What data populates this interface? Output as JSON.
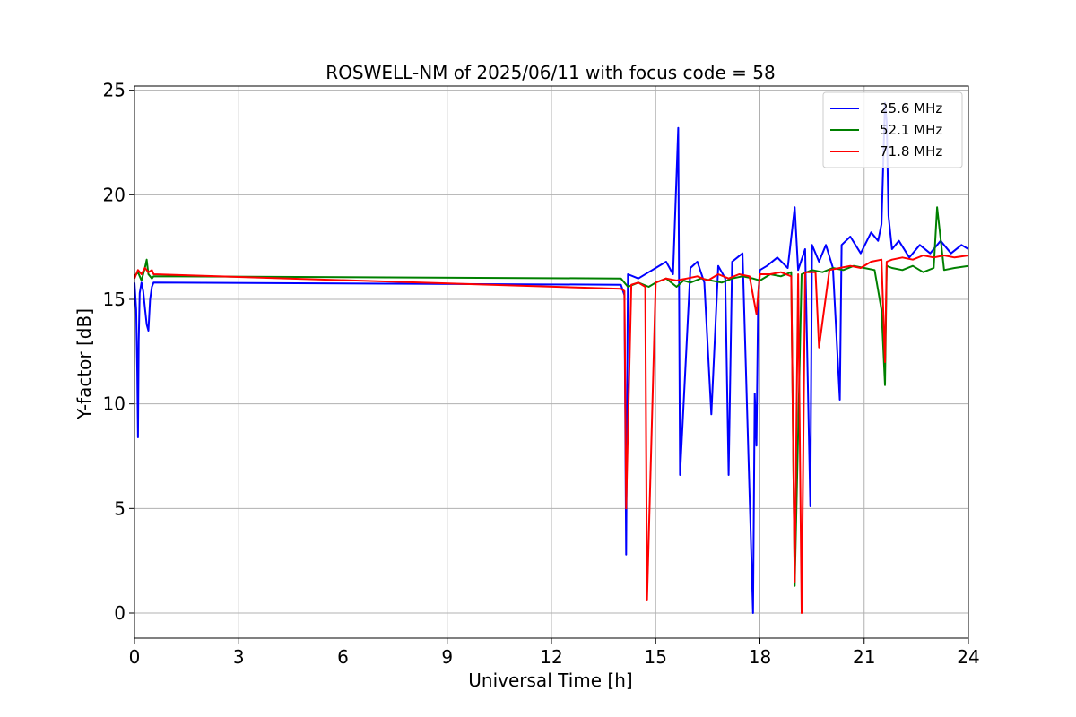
{
  "chart_data": {
    "type": "line",
    "title": "ROSWELL-NM of 2025/06/11 with focus code = 58",
    "xlabel": "Universal Time [h]",
    "ylabel": "Y-factor [dB]",
    "xlim": [
      0,
      24
    ],
    "ylim": [
      -1.2,
      25.2
    ],
    "xticks": [
      0,
      3,
      6,
      9,
      12,
      15,
      18,
      21,
      24
    ],
    "xtick_labels": [
      "0",
      "3",
      "6",
      "9",
      "12",
      "15",
      "18",
      "21",
      "24"
    ],
    "yticks": [
      0,
      5,
      10,
      15,
      20,
      25
    ],
    "ytick_labels": [
      "0",
      "5",
      "10",
      "15",
      "20",
      "25"
    ],
    "grid": true,
    "legend_position": "top-right",
    "series": [
      {
        "name": "25.6 MHz",
        "color": "#0000ff",
        "x": [
          0.0,
          0.05,
          0.08,
          0.1,
          0.12,
          0.15,
          0.2,
          0.25,
          0.3,
          0.35,
          0.4,
          0.45,
          0.5,
          0.55,
          14.0,
          14.1,
          14.15,
          14.2,
          14.5,
          14.8,
          15.0,
          15.3,
          15.5,
          15.65,
          15.7,
          16.0,
          16.2,
          16.4,
          16.6,
          16.8,
          17.0,
          17.1,
          17.2,
          17.5,
          17.8,
          17.85,
          17.9,
          17.95,
          18.0,
          18.2,
          18.5,
          18.8,
          19.0,
          19.1,
          19.3,
          19.45,
          19.5,
          19.7,
          19.9,
          20.1,
          20.3,
          20.35,
          20.6,
          20.9,
          21.2,
          21.4,
          21.5,
          21.6,
          21.65,
          21.7,
          21.8,
          22.0,
          22.3,
          22.6,
          22.9,
          23.2,
          23.5,
          23.8,
          24.0
        ],
        "values": [
          15.8,
          14.5,
          11.5,
          8.4,
          13.0,
          15.3,
          15.8,
          15.4,
          14.6,
          13.8,
          13.5,
          15.0,
          15.6,
          15.8,
          15.7,
          15.2,
          2.8,
          16.2,
          16.0,
          16.3,
          16.5,
          16.8,
          16.2,
          23.2,
          6.6,
          16.5,
          16.8,
          15.8,
          9.5,
          16.6,
          16.0,
          6.6,
          16.8,
          17.2,
          0.0,
          10.5,
          8.0,
          15.2,
          16.4,
          16.6,
          17.0,
          16.5,
          19.4,
          16.4,
          17.4,
          5.1,
          17.6,
          16.8,
          17.6,
          16.5,
          10.2,
          17.6,
          18.0,
          17.2,
          18.2,
          17.8,
          18.6,
          24.4,
          23.5,
          19.0,
          17.4,
          17.8,
          17.0,
          17.6,
          17.2,
          17.8,
          17.2,
          17.6,
          17.4
        ]
      },
      {
        "name": "52.1 MHz",
        "color": "#008000",
        "x": [
          0.0,
          0.1,
          0.2,
          0.3,
          0.35,
          0.4,
          0.5,
          0.55,
          14.0,
          14.2,
          14.5,
          14.8,
          15.0,
          15.3,
          15.6,
          15.8,
          16.0,
          16.3,
          16.6,
          16.9,
          17.2,
          17.5,
          17.8,
          18.0,
          18.3,
          18.6,
          18.9,
          19.0,
          19.2,
          19.5,
          19.8,
          20.1,
          20.4,
          20.7,
          21.0,
          21.3,
          21.5,
          21.6,
          21.65,
          21.8,
          22.1,
          22.4,
          22.7,
          23.0,
          23.1,
          23.3,
          23.6,
          24.0
        ],
        "values": [
          16.1,
          16.3,
          15.9,
          16.5,
          16.9,
          16.2,
          16.0,
          16.1,
          16.0,
          15.6,
          15.8,
          15.6,
          15.8,
          16.0,
          15.6,
          15.9,
          15.8,
          16.0,
          15.9,
          15.8,
          16.0,
          16.1,
          16.0,
          15.9,
          16.2,
          16.1,
          16.3,
          1.3,
          16.2,
          16.4,
          16.3,
          16.5,
          16.4,
          16.6,
          16.5,
          16.4,
          14.5,
          10.9,
          16.6,
          16.5,
          16.4,
          16.6,
          16.3,
          16.5,
          19.4,
          16.4,
          16.5,
          16.6
        ]
      },
      {
        "name": "71.8 MHz",
        "color": "#ff0000",
        "x": [
          0.0,
          0.1,
          0.2,
          0.3,
          0.4,
          0.5,
          0.55,
          14.0,
          14.1,
          14.15,
          14.3,
          14.5,
          14.7,
          14.75,
          15.0,
          15.3,
          15.6,
          15.9,
          16.2,
          16.5,
          16.8,
          17.1,
          17.4,
          17.7,
          17.9,
          18.0,
          18.3,
          18.6,
          18.9,
          19.0,
          19.1,
          19.2,
          19.3,
          19.6,
          19.7,
          20.0,
          20.3,
          20.6,
          20.9,
          21.2,
          21.5,
          21.6,
          21.65,
          21.8,
          22.1,
          22.4,
          22.7,
          23.0,
          23.3,
          23.6,
          24.0
        ],
        "values": [
          16.0,
          16.4,
          16.2,
          16.5,
          16.3,
          16.4,
          16.2,
          15.5,
          15.4,
          5.0,
          15.7,
          15.8,
          15.6,
          0.6,
          15.8,
          16.0,
          15.9,
          16.0,
          16.1,
          15.9,
          16.2,
          16.0,
          16.2,
          16.1,
          14.3,
          16.2,
          16.2,
          16.3,
          16.1,
          1.5,
          16.2,
          0.0,
          16.3,
          16.3,
          12.7,
          16.4,
          16.5,
          16.6,
          16.5,
          16.8,
          16.9,
          12.0,
          16.8,
          16.9,
          17.0,
          16.9,
          17.1,
          17.0,
          17.1,
          17.0,
          17.1
        ]
      }
    ]
  }
}
